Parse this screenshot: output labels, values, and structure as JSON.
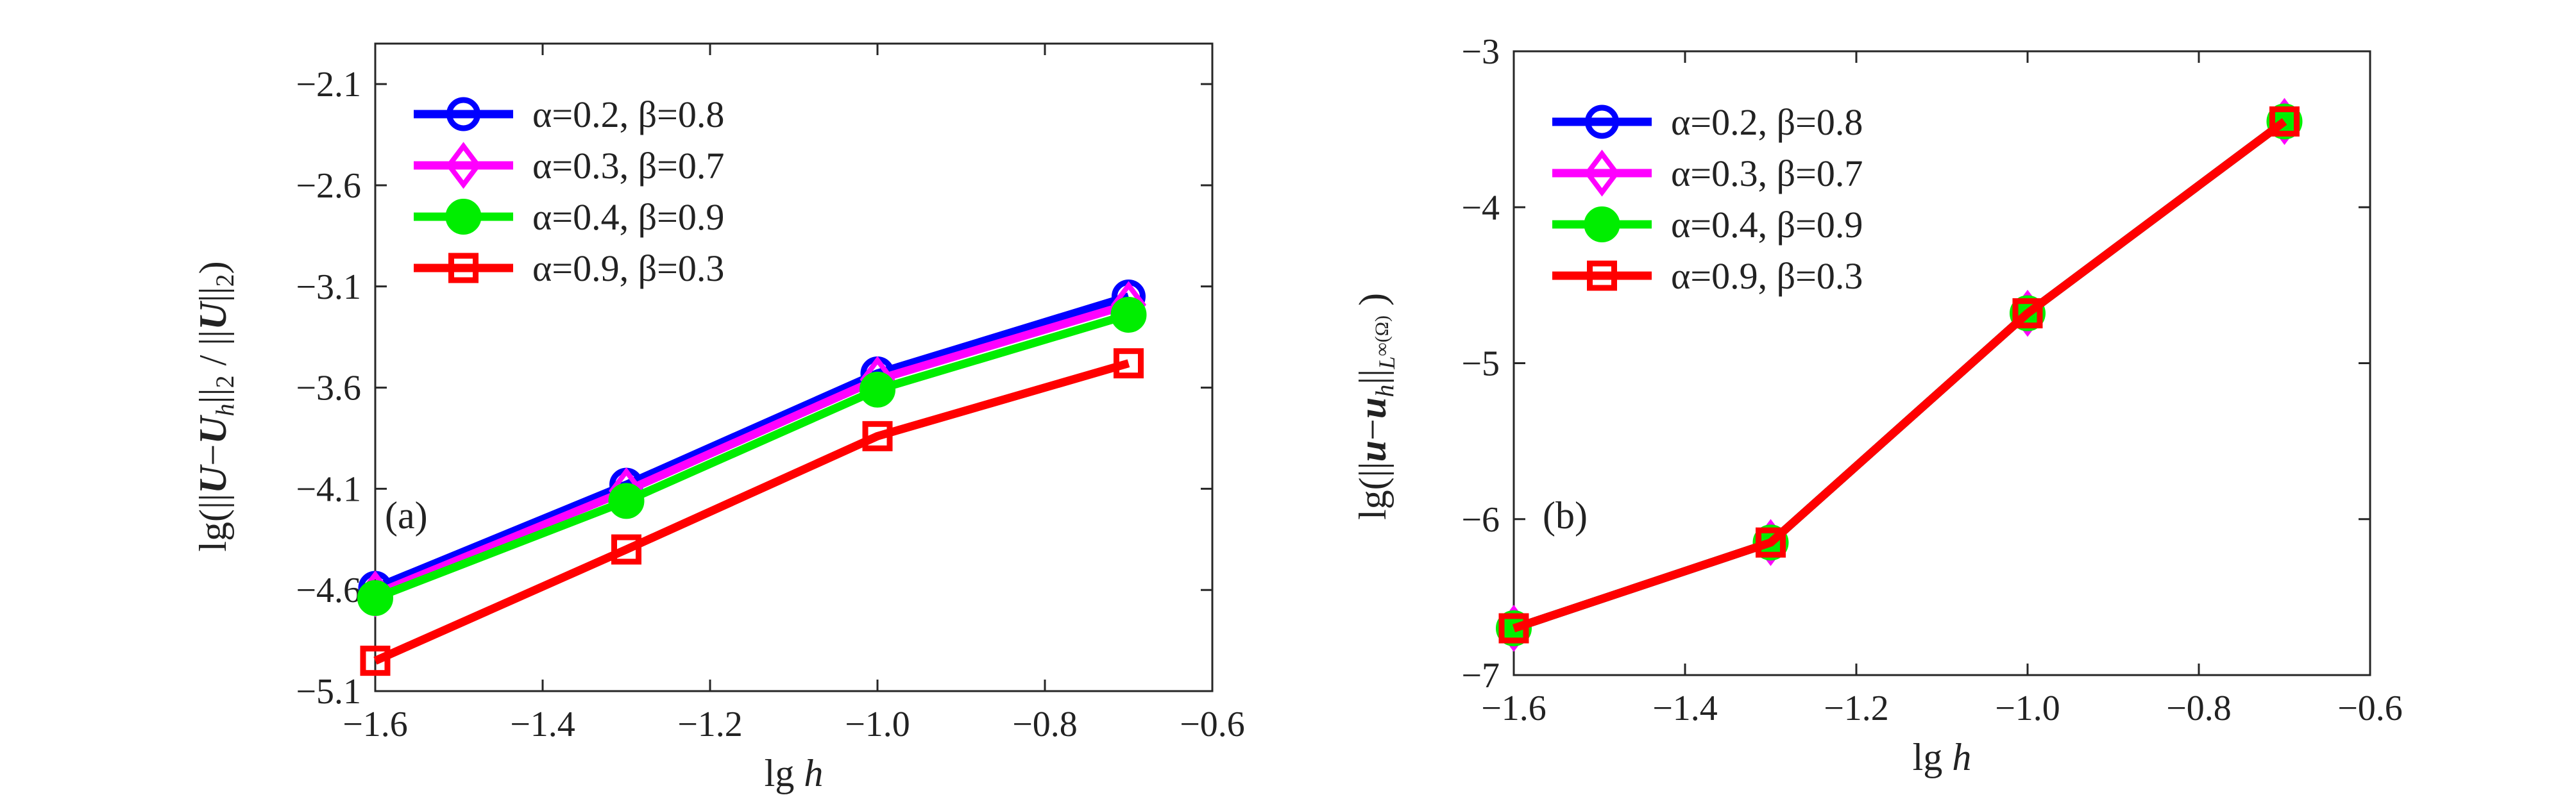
{
  "chart_data": [
    {
      "type": "line",
      "panel_label": "(a)",
      "xlabel": "lg h",
      "ylabel": "lg(||U−U_h||_2/||U||_2)",
      "ylabel_parts": [
        "lg(||",
        "U",
        "−",
        "U",
        "h",
        "||",
        "2",
        " / ||",
        "U",
        "||",
        "2",
        ")"
      ],
      "xlim": [
        -1.6,
        -0.6
      ],
      "ylim": [
        -5.1,
        -1.9
      ],
      "xticks": [
        -1.6,
        -1.4,
        -1.2,
        -1.0,
        -0.8,
        -0.6
      ],
      "xtick_labels": [
        "−1.6",
        "−1.4",
        "−1.2",
        "−1.0",
        "−0.8",
        "−0.6"
      ],
      "yticks": [
        -5.1,
        -4.6,
        -4.1,
        -3.6,
        -3.1,
        -2.6,
        -2.1
      ],
      "ytick_labels": [
        "−5.1",
        "−4.6",
        "−4.1",
        "−3.6",
        "−3.1",
        "−2.6",
        "−2.1"
      ],
      "x": [
        -1.6,
        -1.3,
        -1.0,
        -0.7
      ],
      "legend_position": "top-left",
      "series": [
        {
          "name": "α=0.2, β=0.8",
          "color": "#0000ff",
          "marker": "circle",
          "values": [
            -4.59,
            -4.08,
            -3.53,
            -3.15
          ]
        },
        {
          "name": "α=0.3, β=0.7",
          "color": "#ff00ff",
          "marker": "diamond",
          "values": [
            -4.62,
            -4.11,
            -3.56,
            -3.19
          ]
        },
        {
          "name": "α=0.4, β=0.9",
          "color": "#00ee00",
          "marker": "filled-circle",
          "values": [
            -4.64,
            -4.16,
            -3.61,
            -3.24
          ]
        },
        {
          "name": "α=0.9, β=0.3",
          "color": "#ff0000",
          "marker": "square",
          "values": [
            -4.95,
            -4.4,
            -3.84,
            -3.48
          ]
        }
      ]
    },
    {
      "type": "line",
      "panel_label": "(b)",
      "xlabel": "lg h",
      "ylabel": "lg(||u−u_h||_{L∞(Ω)})",
      "ylabel_parts": [
        "lg(||",
        "u",
        "−",
        "u",
        "h",
        "||",
        "L",
        "∞(Ω)",
        " )"
      ],
      "xlim": [
        -1.6,
        -0.6
      ],
      "ylim": [
        -7,
        -3
      ],
      "xticks": [
        -1.6,
        -1.4,
        -1.2,
        -1.0,
        -0.8,
        -0.6
      ],
      "xtick_labels": [
        "−1.6",
        "−1.4",
        "−1.2",
        "−1.0",
        "−0.8",
        "−0.6"
      ],
      "yticks": [
        -7,
        -6,
        -5,
        -4,
        -3
      ],
      "ytick_labels": [
        "−7",
        "−6",
        "−5",
        "−4",
        "−3"
      ],
      "x": [
        -1.6,
        -1.3,
        -1.0,
        -0.7
      ],
      "legend_position": "top-left",
      "series": [
        {
          "name": "α=0.2, β=0.8",
          "color": "#0000ff",
          "marker": "circle",
          "values": [
            -6.7,
            -6.15,
            -4.68,
            -3.45
          ]
        },
        {
          "name": "α=0.3, β=0.7",
          "color": "#ff00ff",
          "marker": "diamond",
          "values": [
            -6.7,
            -6.15,
            -4.68,
            -3.45
          ]
        },
        {
          "name": "α=0.4, β=0.9",
          "color": "#00ee00",
          "marker": "filled-circle",
          "values": [
            -6.7,
            -6.15,
            -4.68,
            -3.45
          ]
        },
        {
          "name": "α=0.9, β=0.3",
          "color": "#ff0000",
          "marker": "square",
          "values": [
            -6.7,
            -6.15,
            -4.68,
            -3.45
          ]
        }
      ]
    }
  ]
}
